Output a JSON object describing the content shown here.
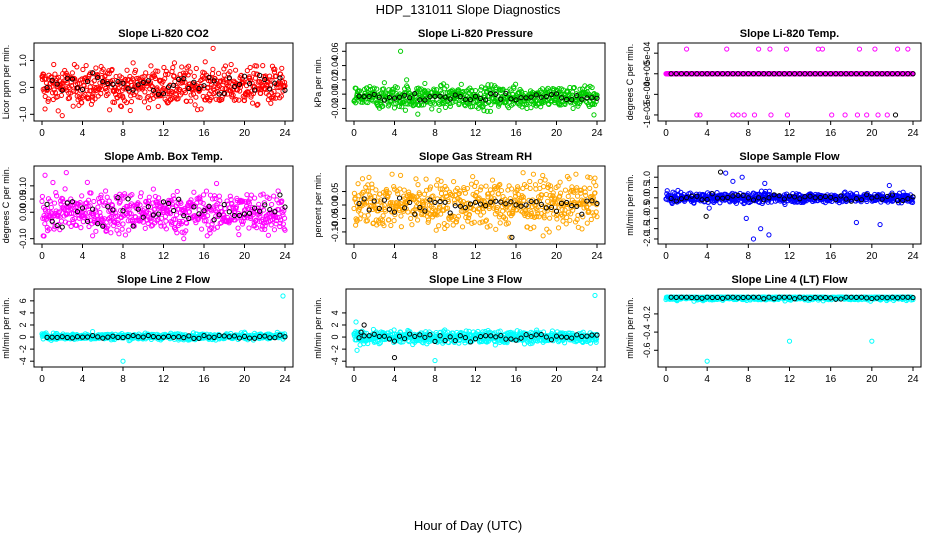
{
  "figure": {
    "title": "HDP_131011  Slope Diagnostics",
    "xlabel": "Hour of Day (UTC)"
  },
  "chart_data": [
    {
      "type": "scatter",
      "title": "Slope Li-820 CO2",
      "ylabel": "Licor ppm per min.",
      "xlim": [
        0,
        24
      ],
      "xticks": [
        0,
        4,
        8,
        12,
        16,
        20,
        24
      ],
      "ylim": [
        -1.1,
        1.5
      ],
      "yticks": [
        -1.0,
        0.0,
        1.0
      ],
      "ytick_labels": [
        "-1.0",
        "0.0",
        "1.0"
      ],
      "series": [
        {
          "color": "#ff0000",
          "x_range": [
            0,
            24
          ],
          "center": 0.05,
          "spread": 0.35,
          "outliers": [
            [
              16.9,
              1.45
            ],
            [
              0.3,
              -0.8
            ],
            [
              2.0,
              -1.05
            ],
            [
              0.1,
              0.5
            ],
            [
              5.0,
              -0.5
            ]
          ]
        },
        {
          "color": "#000000",
          "x_range": [
            0.5,
            24
          ],
          "center": 0.05,
          "spread": 0.2,
          "step": 0.5,
          "outliers": []
        }
      ]
    },
    {
      "type": "scatter",
      "title": "Slope Li-820 Pressure",
      "ylabel": "kPa per min.",
      "xlim": [
        0,
        24
      ],
      "xticks": [
        0,
        4,
        8,
        12,
        16,
        20,
        24
      ],
      "ylim": [
        -0.032,
        0.066
      ],
      "yticks": [
        -0.02,
        0.0,
        0.02,
        0.04,
        0.06
      ],
      "ytick_labels": [
        "-0.02",
        "0.00",
        "0.02",
        "0.04",
        "0.06"
      ],
      "series": [
        {
          "color": "#00cc00",
          "x_range": [
            0,
            24
          ],
          "center": -0.004,
          "spread": 0.008,
          "outliers": [
            [
              4.6,
              0.06
            ],
            [
              6.3,
              -0.028
            ],
            [
              23.7,
              -0.029
            ],
            [
              5.2,
              0.02
            ],
            [
              7.0,
              0.015
            ]
          ]
        },
        {
          "color": "#000000",
          "x_range": [
            0.5,
            24
          ],
          "center": -0.004,
          "spread": 0.003,
          "step": 0.5,
          "outliers": []
        }
      ]
    },
    {
      "type": "scatter",
      "title": "Slope Li-820 Temp.",
      "ylabel": "degrees C per min.",
      "xlim": [
        0,
        24
      ],
      "xticks": [
        0,
        4,
        8,
        12,
        16,
        20,
        24
      ],
      "ylim": [
        -0.00105,
        0.00065
      ],
      "yticks": [
        -0.001,
        -0.0005,
        0.0,
        0.0005
      ],
      "ytick_labels": [
        "-1e-03",
        "-5e-04",
        "0e+00",
        "5e-04"
      ],
      "series": [
        {
          "color": "#ff00ff",
          "x_range": [
            0,
            24
          ],
          "center": 0.0,
          "spread": 0.0,
          "outliers": [
            [
              2.0,
              0.0006
            ],
            [
              5.9,
              0.0006
            ],
            [
              9.0,
              0.0006
            ],
            [
              10.1,
              0.0006
            ],
            [
              11.7,
              0.0006
            ],
            [
              14.8,
              0.0006
            ],
            [
              15.2,
              0.0006
            ],
            [
              18.8,
              0.0006
            ],
            [
              20.3,
              0.0006
            ],
            [
              22.5,
              0.0006
            ],
            [
              23.5,
              0.0006
            ],
            [
              3.0,
              -0.001
            ],
            [
              3.3,
              -0.001
            ],
            [
              6.5,
              -0.001
            ],
            [
              7.0,
              -0.001
            ],
            [
              7.6,
              -0.001
            ],
            [
              8.6,
              -0.001
            ],
            [
              10.2,
              -0.001
            ],
            [
              11.8,
              -0.001
            ],
            [
              16.1,
              -0.001
            ],
            [
              17.4,
              -0.001
            ],
            [
              18.6,
              -0.001
            ],
            [
              19.5,
              -0.001
            ],
            [
              20.6,
              -0.001
            ],
            [
              21.5,
              -0.001
            ]
          ]
        },
        {
          "color": "#000000",
          "x_range": [
            0.5,
            24
          ],
          "center": 0.0,
          "spread": 0.0,
          "step": 0.5,
          "outliers": [
            [
              22.3,
              -0.001
            ]
          ]
        }
      ]
    },
    {
      "type": "scatter",
      "title": "Slope Amb. Box Temp.",
      "ylabel": "degrees C per min.",
      "xlim": [
        0,
        24
      ],
      "xticks": [
        0,
        4,
        8,
        12,
        16,
        20,
        24
      ],
      "ylim": [
        -0.105,
        0.16
      ],
      "yticks": [
        -0.1,
        0.0,
        0.05,
        0.1
      ],
      "ytick_labels": [
        "-0.10",
        "0.00",
        "0.05",
        "0.10"
      ],
      "series": [
        {
          "color": "#ff00ff",
          "x_range": [
            0,
            24
          ],
          "center": 0.0,
          "spread": 0.04,
          "outliers": [
            [
              0.3,
              0.14
            ],
            [
              2.4,
              0.15
            ],
            [
              14.0,
              -0.1
            ],
            [
              0.2,
              -0.09
            ]
          ]
        },
        {
          "color": "#000000",
          "x_range": [
            0.5,
            24
          ],
          "center": 0.0,
          "spread": 0.03,
          "step": 0.5,
          "outliers": []
        }
      ]
    },
    {
      "type": "scatter",
      "title": "Slope Gas Stream RH",
      "ylabel": "percent per min.",
      "xlim": [
        0,
        24
      ],
      "xticks": [
        0,
        4,
        8,
        12,
        16,
        20,
        24
      ],
      "ylim": [
        -0.13,
        0.13
      ],
      "yticks": [
        -0.1,
        -0.05,
        0.0,
        0.05
      ],
      "ytick_labels": [
        "-0.10",
        "-0.05",
        "0.00",
        "0.05"
      ],
      "series": [
        {
          "color": "#ffa500",
          "x_range": [
            0,
            24
          ],
          "center": 0.005,
          "spread": 0.045,
          "outliers": [
            [
              16.7,
              0.12
            ],
            [
              15.4,
              -0.12
            ],
            [
              23.8,
              0.1
            ]
          ]
        },
        {
          "color": "#000000",
          "x_range": [
            0.5,
            24
          ],
          "center": 0.0,
          "spread": 0.015,
          "step": 0.5,
          "outliers": [
            [
              15.6,
              -0.12
            ]
          ]
        }
      ]
    },
    {
      "type": "scatter",
      "title": "Slope Sample Flow",
      "ylabel": "ml/min per min.",
      "xlim": [
        0,
        24
      ],
      "xticks": [
        0,
        4,
        8,
        12,
        16,
        20,
        24
      ],
      "ylim": [
        -2.05,
        1.35
      ],
      "yticks": [
        -2.0,
        -1.5,
        -1.0,
        -0.5,
        0.0,
        0.5,
        1.0
      ],
      "ytick_labels": [
        "-2.0",
        "-1.5",
        "-1.0",
        "-0.5",
        "0.0",
        "0.5",
        "1.0"
      ],
      "series": [
        {
          "color": "#0000ff",
          "x_range": [
            0,
            24
          ],
          "center": 0.0,
          "spread": 0.12,
          "outliers": [
            [
              5.8,
              1.2
            ],
            [
              7.4,
              1.0
            ],
            [
              8.5,
              -2.0
            ],
            [
              9.2,
              -1.5
            ],
            [
              10.0,
              -1.8
            ],
            [
              18.5,
              -1.2
            ],
            [
              20.8,
              -1.3
            ],
            [
              21.7,
              0.6
            ],
            [
              4.2,
              -0.5
            ],
            [
              6.5,
              0.8
            ],
            [
              7.8,
              -1.0
            ],
            [
              9.6,
              0.7
            ]
          ]
        },
        {
          "color": "#000000",
          "x_range": [
            0.5,
            24
          ],
          "center": 0.0,
          "spread": 0.08,
          "step": 0.5,
          "outliers": [
            [
              5.3,
              1.25
            ],
            [
              3.9,
              -0.9
            ]
          ]
        }
      ]
    },
    {
      "type": "scatter",
      "title": "Slope Line 2 Flow",
      "ylabel": "ml/min per min.",
      "xlim": [
        0,
        24
      ],
      "xticks": [
        0,
        4,
        8,
        12,
        16,
        20,
        24
      ],
      "ylim": [
        -4.3,
        7.3
      ],
      "yticks": [
        -4,
        -2,
        0,
        2,
        4,
        6
      ],
      "ytick_labels": [
        "-4",
        "-2",
        "0",
        "2",
        "4",
        "6"
      ],
      "series": [
        {
          "color": "#00ffff",
          "x_range": [
            0,
            24
          ],
          "center": 0.1,
          "spread": 0.25,
          "outliers": [
            [
              23.8,
              6.8
            ],
            [
              8.0,
              -4.0
            ],
            [
              5.0,
              0.9
            ],
            [
              20.0,
              0.8
            ]
          ]
        },
        {
          "color": "#000000",
          "x_range": [
            0.5,
            24
          ],
          "center": 0.0,
          "spread": 0.15,
          "step": 0.5,
          "outliers": []
        }
      ]
    },
    {
      "type": "scatter",
      "title": "Slope Line 3 Flow",
      "ylabel": "ml/min per min.",
      "xlim": [
        0,
        24
      ],
      "xticks": [
        0,
        4,
        8,
        12,
        16,
        20,
        24
      ],
      "ylim": [
        -4.3,
        7.3
      ],
      "yticks": [
        -4,
        -2,
        0,
        2,
        4
      ],
      "ytick_labels": [
        "-4",
        "-2",
        "0",
        "2",
        "4"
      ],
      "series": [
        {
          "color": "#00ffff",
          "x_range": [
            0,
            24
          ],
          "center": 0.0,
          "spread": 0.5,
          "outliers": [
            [
              23.8,
              6.9
            ],
            [
              8.0,
              -3.9
            ],
            [
              0.3,
              -2.2
            ],
            [
              0.2,
              2.5
            ],
            [
              12.4,
              -0.8
            ]
          ]
        },
        {
          "color": "#000000",
          "x_range": [
            0.5,
            24
          ],
          "center": 0.0,
          "spread": 0.3,
          "step": 0.5,
          "outliers": [
            [
              4.0,
              -3.4
            ],
            [
              1.0,
              2.0
            ],
            [
              0.7,
              0.8
            ]
          ]
        }
      ]
    },
    {
      "type": "scatter",
      "title": "Slope Line 4 (LT) Flow",
      "ylabel": "ml/min per min.",
      "xlim": [
        0,
        24
      ],
      "xticks": [
        0,
        4,
        8,
        12,
        16,
        20,
        24
      ],
      "ylim": [
        -0.74,
        0.03
      ],
      "yticks": [
        -0.6,
        -0.4,
        -0.2
      ],
      "ytick_labels": [
        "-0.6",
        "-0.4",
        "-0.2"
      ],
      "series": [
        {
          "color": "#00ffff",
          "x_range": [
            0,
            24
          ],
          "center": -0.02,
          "spread": 0.015,
          "outliers": [
            [
              4.0,
              -0.72
            ],
            [
              12.0,
              -0.5
            ],
            [
              20.0,
              -0.5
            ]
          ]
        },
        {
          "color": "#000000",
          "x_range": [
            0.5,
            24
          ],
          "center": -0.02,
          "spread": 0.01,
          "step": 0.5,
          "outliers": []
        }
      ]
    }
  ]
}
